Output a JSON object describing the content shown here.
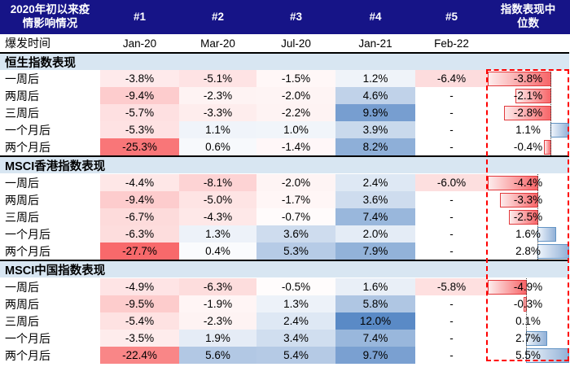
{
  "header": {
    "corner_title_lines": [
      "2020年初以来疫",
      "情影响情况"
    ],
    "event_columns": [
      "#1",
      "#2",
      "#3",
      "#4",
      "#5"
    ],
    "median_title_lines": [
      "指数表现中",
      "位数"
    ]
  },
  "outbreak_row": {
    "label": "爆发时间",
    "dates": [
      "Jan-20",
      "Mar-20",
      "Jul-20",
      "Jan-21",
      "Feb-22"
    ]
  },
  "colors": {
    "header_bg": "#161487",
    "header_text": "#ffffff",
    "section_band_bg": "#d8e6f2",
    "section_top_border": "#000000",
    "scale_negative_end": "#F8696B",
    "scale_positive_end": "#5A8AC6",
    "scale_mid": "#FFFFFF",
    "bar_negative_border": "#e23b3e",
    "bar_positive_border": "#6394c4",
    "dashed_outline": "#ff0000"
  },
  "chart_data": {
    "type": "heatmap",
    "title": "2020年初以来疫情影响情况",
    "columns": [
      "#1",
      "#2",
      "#3",
      "#4",
      "#5",
      "指数表现中位数"
    ],
    "outbreak_dates": [
      "Jan-20",
      "Mar-20",
      "Jul-20",
      "Jan-21",
      "Feb-22"
    ],
    "value_format": "percent_one_decimal",
    "color_scale": {
      "negative_min": -27.7,
      "zero": 0,
      "positive_max": 12.0
    },
    "sections": [
      {
        "title": "恒生指数表现",
        "rows": [
          {
            "label": "一周后",
            "values": [
              -3.8,
              -5.1,
              -1.5,
              1.2,
              -6.4
            ],
            "median": -3.8
          },
          {
            "label": "两周后",
            "values": [
              -9.4,
              -2.3,
              -2.0,
              4.6,
              null
            ],
            "median": -2.1
          },
          {
            "label": "三周后",
            "values": [
              -5.7,
              -3.3,
              -2.2,
              9.9,
              null
            ],
            "median": -2.8
          },
          {
            "label": "一个月后",
            "values": [
              -5.3,
              1.1,
              1.0,
              3.9,
              null
            ],
            "median": 1.1
          },
          {
            "label": "两个月后",
            "values": [
              -25.3,
              0.6,
              -1.4,
              8.2,
              null
            ],
            "median": -0.4
          }
        ]
      },
      {
        "title": "MSCI香港指数表现",
        "rows": [
          {
            "label": "一周后",
            "values": [
              -4.4,
              -8.1,
              -2.0,
              2.4,
              -6.0
            ],
            "median": -4.4
          },
          {
            "label": "两周后",
            "values": [
              -9.4,
              -5.0,
              -1.7,
              3.6,
              null
            ],
            "median": -3.3
          },
          {
            "label": "三周后",
            "values": [
              -6.7,
              -4.3,
              -0.7,
              7.4,
              null
            ],
            "median": -2.5
          },
          {
            "label": "一个月后",
            "values": [
              -6.3,
              1.3,
              3.6,
              2.0,
              null
            ],
            "median": 1.6
          },
          {
            "label": "两个月后",
            "values": [
              -27.7,
              0.4,
              5.3,
              7.9,
              null
            ],
            "median": 2.8
          }
        ]
      },
      {
        "title": "MSCI中国指数表现",
        "rows": [
          {
            "label": "一周后",
            "values": [
              -4.9,
              -6.3,
              -0.5,
              1.6,
              -5.8
            ],
            "median": -4.9
          },
          {
            "label": "两周后",
            "values": [
              -9.5,
              -1.9,
              1.3,
              5.8,
              null
            ],
            "median": -0.3
          },
          {
            "label": "三周后",
            "values": [
              -5.4,
              -2.3,
              2.4,
              12.0,
              null
            ],
            "median": 0.1
          },
          {
            "label": "一个月后",
            "values": [
              -3.5,
              1.9,
              3.4,
              7.4,
              null
            ],
            "median": 2.7
          },
          {
            "label": "两个月后",
            "values": [
              -22.4,
              5.6,
              5.4,
              9.7,
              null
            ],
            "median": 5.5
          }
        ]
      }
    ]
  }
}
